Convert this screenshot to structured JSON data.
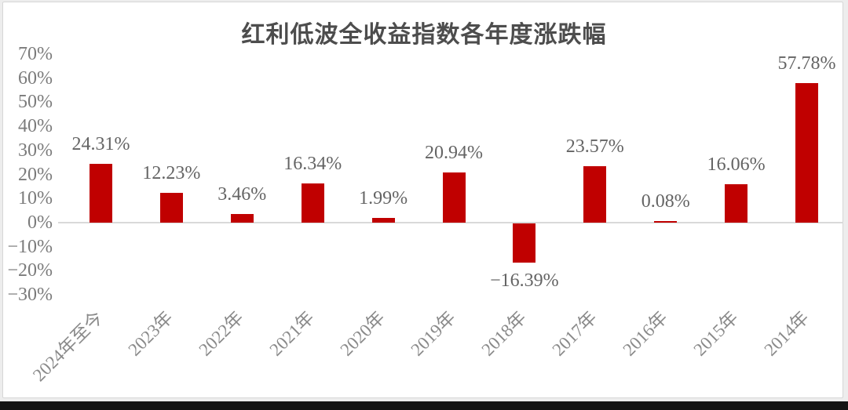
{
  "window": {
    "background_color": "#ededed",
    "card_color": "#ffffff",
    "bottom_edge_bar_color": "#141414"
  },
  "chart_data": {
    "type": "bar",
    "title": "红利低波全收益指数各年度涨跌幅",
    "categories": [
      "2024年至今",
      "2023年",
      "2022年",
      "2021年",
      "2020年",
      "2019年",
      "2018年",
      "2017年",
      "2016年",
      "2015年",
      "2014年"
    ],
    "values": [
      24.31,
      12.23,
      3.46,
      16.34,
      1.99,
      20.94,
      -16.39,
      23.57,
      0.08,
      16.06,
      57.78
    ],
    "data_labels": [
      "24.31%",
      "12.23%",
      "3.46%",
      "16.34%",
      "1.99%",
      "20.94%",
      "−16.39%",
      "23.57%",
      "0.08%",
      "16.06%",
      "57.78%"
    ],
    "y_tick_labels": [
      "70%",
      "60%",
      "50%",
      "40%",
      "30%",
      "20%",
      "10%",
      "0%",
      "−10%",
      "−20%",
      "−30%"
    ],
    "y_tick_values": [
      70,
      60,
      50,
      40,
      30,
      20,
      10,
      0,
      -10,
      -20,
      -30
    ],
    "ylim": [
      -30,
      70
    ],
    "xlabel": "",
    "ylabel": "",
    "grid": false,
    "legend": "none",
    "bar_color": "#c00000",
    "axis_line_color": "#d9d9d9"
  }
}
